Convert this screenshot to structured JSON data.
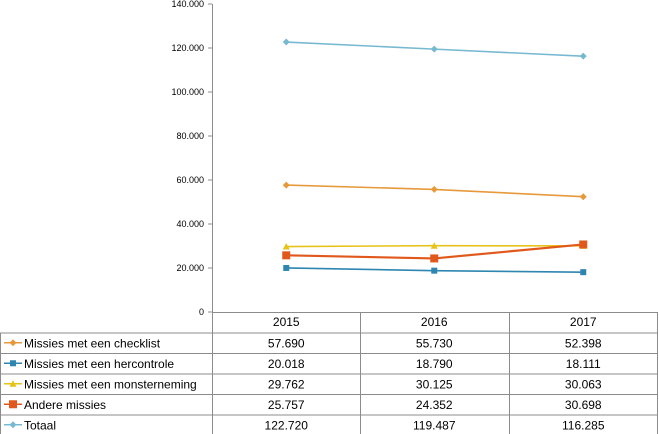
{
  "chart_data": {
    "type": "line",
    "categories": [
      "2015",
      "2016",
      "2017"
    ],
    "ylim": [
      0,
      140000
    ],
    "yticks": [
      "0",
      "20.000",
      "40.000",
      "60.000",
      "80.000",
      "100.000",
      "120.000",
      "140.000"
    ],
    "grid": false,
    "legend": "data-table-left",
    "series": [
      {
        "name": "Missies met een checklist",
        "color": "#e69a3c",
        "marker": "diamond",
        "values": [
          57690,
          55730,
          52398
        ],
        "labels": [
          "57.690",
          "55.730",
          "52.398"
        ]
      },
      {
        "name": "Missies met een hercontrole",
        "color": "#2e86b0",
        "marker": "square",
        "values": [
          20018,
          18790,
          18111
        ],
        "labels": [
          "20.018",
          "18.790",
          "18.111"
        ]
      },
      {
        "name": "Missies met een monsterneming",
        "color": "#e6c31a",
        "marker": "triangle",
        "values": [
          29762,
          30125,
          30063
        ],
        "labels": [
          "29.762",
          "30.125",
          "30.063"
        ]
      },
      {
        "name": "Andere missies",
        "color": "#e0581c",
        "marker": "square-large",
        "values": [
          25757,
          24352,
          30698
        ],
        "labels": [
          "25.757",
          "24.352",
          "30.698"
        ]
      },
      {
        "name": "Totaal",
        "color": "#78b9d2",
        "marker": "diamond",
        "values": [
          122720,
          119487,
          116285
        ],
        "labels": [
          "122.720",
          "119.487",
          "116.285"
        ]
      }
    ]
  }
}
